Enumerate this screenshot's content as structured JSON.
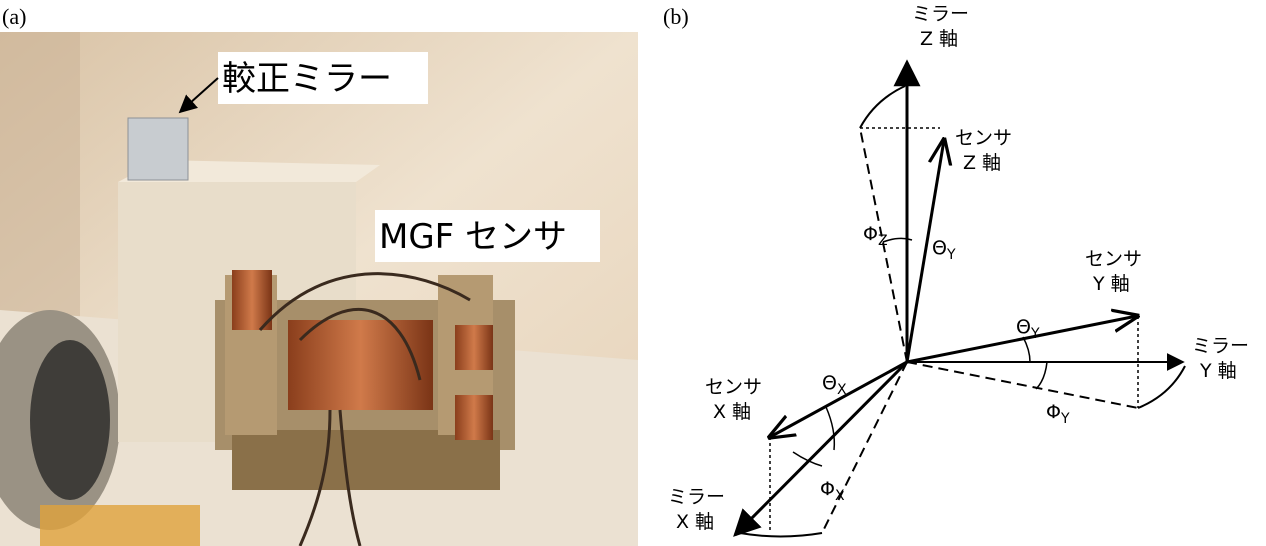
{
  "panel_a": {
    "label": "(a)",
    "callouts": [
      "較正ミラー",
      "MGF センサ"
    ]
  },
  "panel_b": {
    "label": "(b)",
    "axes": [
      {
        "lines": [
          "ミラー",
          "Z 軸"
        ]
      },
      {
        "lines": [
          "センサ",
          "Z 軸"
        ]
      },
      {
        "lines": [
          "センサ",
          "Y 軸"
        ]
      },
      {
        "lines": [
          "ミラー",
          "Y 軸"
        ]
      },
      {
        "lines": [
          "センサ",
          "X 軸"
        ]
      },
      {
        "lines": [
          "ミラー",
          "X 軸"
        ]
      }
    ],
    "angles": [
      {
        "symbol": "Φ",
        "sub": "Z"
      },
      {
        "symbol": "Θ",
        "sub": "Y"
      },
      {
        "symbol": "Θ",
        "sub": "Y"
      },
      {
        "symbol": "Φ",
        "sub": "Y"
      },
      {
        "symbol": "Θ",
        "sub": "X"
      },
      {
        "symbol": "Φ",
        "sub": "X"
      }
    ]
  }
}
